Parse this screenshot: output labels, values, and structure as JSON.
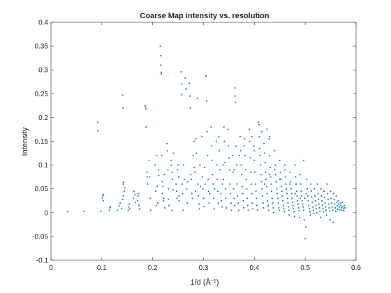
{
  "chart_data": {
    "type": "scatter",
    "title": "Coarse Map intensity vs. resolution",
    "xlabel": "1/d (Å",
    "xlabel_sup": "−1",
    "xlabel_close": ")",
    "ylabel": "Intensity",
    "xlim": [
      0,
      0.6
    ],
    "ylim": [
      -0.1,
      0.4
    ],
    "xticks": [
      "0",
      "0.1",
      "0.2",
      "0.3",
      "0.4",
      "0.5",
      "0.6"
    ],
    "yticks": [
      "-0.1",
      "-0.05",
      "0",
      "0.05",
      "0.1",
      "0.15",
      "0.2",
      "0.25",
      "0.3",
      "0.35",
      "0.4"
    ],
    "grid": false,
    "marker_color": "#0072BD",
    "axis_color": "#262626",
    "points": [
      [
        0.033,
        0.002
      ],
      [
        0.065,
        0.003
      ],
      [
        0.092,
        0.19
      ],
      [
        0.092,
        0.172
      ],
      [
        0.098,
        0.003
      ],
      [
        0.101,
        0.03
      ],
      [
        0.102,
        0.035
      ],
      [
        0.103,
        0.038
      ],
      [
        0.103,
        0.025
      ],
      [
        0.115,
        0.005
      ],
      [
        0.116,
        0.01
      ],
      [
        0.117,
        0.012
      ],
      [
        0.131,
        0.005
      ],
      [
        0.134,
        0.014
      ],
      [
        0.136,
        0.02
      ],
      [
        0.139,
        0.009
      ],
      [
        0.141,
        0.247
      ],
      [
        0.142,
        0.22
      ],
      [
        0.141,
        0.028
      ],
      [
        0.142,
        0.06
      ],
      [
        0.143,
        0.064
      ],
      [
        0.144,
        0.045
      ],
      [
        0.142,
        0.035
      ],
      [
        0.145,
        0.052
      ],
      [
        0.152,
        0.005
      ],
      [
        0.153,
        0.012
      ],
      [
        0.154,
        0.018
      ],
      [
        0.155,
        0.008
      ],
      [
        0.162,
        0.03
      ],
      [
        0.163,
        0.045
      ],
      [
        0.165,
        0.038
      ],
      [
        0.166,
        0.022
      ],
      [
        0.17,
        0.025
      ],
      [
        0.171,
        0.035
      ],
      [
        0.172,
        0.04
      ],
      [
        0.173,
        0.015
      ],
      [
        0.174,
        0.008
      ],
      [
        0.185,
        0.225
      ],
      [
        0.186,
        0.222
      ],
      [
        0.187,
        0.218
      ],
      [
        0.187,
        0.18
      ],
      [
        0.189,
        0.085
      ],
      [
        0.189,
        0.075
      ],
      [
        0.19,
        0.06
      ],
      [
        0.193,
        0.11
      ],
      [
        0.194,
        0.075
      ],
      [
        0.195,
        0.03
      ],
      [
        0.196,
        0.005
      ],
      [
        0.205,
        0.1
      ],
      [
        0.206,
        0.045
      ],
      [
        0.207,
        0.015
      ],
      [
        0.208,
        0.12
      ],
      [
        0.209,
        0.055
      ],
      [
        0.21,
        0.02
      ],
      [
        0.211,
        0.09
      ],
      [
        0.212,
        0.078
      ],
      [
        0.215,
        0.35
      ],
      [
        0.216,
        0.33
      ],
      [
        0.216,
        0.31
      ],
      [
        0.217,
        0.295
      ],
      [
        0.217,
        0.292
      ],
      [
        0.218,
        0.12
      ],
      [
        0.219,
        0.065
      ],
      [
        0.219,
        0.04
      ],
      [
        0.22,
        0.055
      ],
      [
        0.221,
        0.025
      ],
      [
        0.222,
        0.03
      ],
      [
        0.223,
        0.08
      ],
      [
        0.224,
        0.01
      ],
      [
        0.228,
        0.145
      ],
      [
        0.229,
        0.13
      ],
      [
        0.23,
        0.09
      ],
      [
        0.231,
        0.05
      ],
      [
        0.231,
        0.028
      ],
      [
        0.232,
        0.015
      ],
      [
        0.236,
        0.11
      ],
      [
        0.237,
        0.1
      ],
      [
        0.238,
        0.085
      ],
      [
        0.238,
        0.005
      ],
      [
        0.239,
        0.07
      ],
      [
        0.24,
        0.048
      ],
      [
        0.241,
        0.125
      ],
      [
        0.246,
        0.06
      ],
      [
        0.247,
        0.045
      ],
      [
        0.248,
        0.03
      ],
      [
        0.249,
        0.09
      ],
      [
        0.25,
        0.1
      ],
      [
        0.251,
        0.075
      ],
      [
        0.252,
        0.035
      ],
      [
        0.252,
        0.025
      ],
      [
        0.256,
        0.296
      ],
      [
        0.257,
        0.27
      ],
      [
        0.257,
        0.248
      ],
      [
        0.258,
        0.06
      ],
      [
        0.259,
        0.04
      ],
      [
        0.26,
        0.005
      ],
      [
        0.261,
        0.1
      ],
      [
        0.262,
        0.07
      ],
      [
        0.264,
        0.283
      ],
      [
        0.265,
        0.26
      ],
      [
        0.266,
        0.26
      ],
      [
        0.267,
        0.05
      ],
      [
        0.268,
        0.02
      ],
      [
        0.269,
        0.065
      ],
      [
        0.272,
        0.272
      ],
      [
        0.273,
        0.245
      ],
      [
        0.274,
        0.22
      ],
      [
        0.275,
        0.08
      ],
      [
        0.276,
        0.07
      ],
      [
        0.277,
        0.04
      ],
      [
        0.278,
        0.03
      ],
      [
        0.28,
        0.12
      ],
      [
        0.281,
        0.15
      ],
      [
        0.282,
        0.095
      ],
      [
        0.283,
        0.085
      ],
      [
        0.284,
        0.045
      ],
      [
        0.285,
        0.155
      ],
      [
        0.286,
        0.125
      ],
      [
        0.288,
        0.24
      ],
      [
        0.289,
        0.06
      ],
      [
        0.29,
        0.035
      ],
      [
        0.291,
        0.018
      ],
      [
        0.292,
        0.008
      ],
      [
        0.293,
        0.1
      ],
      [
        0.294,
        0.055
      ],
      [
        0.297,
        0.16
      ],
      [
        0.298,
        0.075
      ],
      [
        0.299,
        0.05
      ],
      [
        0.3,
        0.03
      ],
      [
        0.301,
        0.013
      ],
      [
        0.302,
        0.095
      ],
      [
        0.303,
        0.06
      ],
      [
        0.305,
        0.287
      ],
      [
        0.306,
        0.235
      ],
      [
        0.307,
        0.17
      ],
      [
        0.308,
        0.12
      ],
      [
        0.309,
        0.07
      ],
      [
        0.31,
        0.045
      ],
      [
        0.311,
        0.02
      ],
      [
        0.312,
        0.04
      ],
      [
        0.315,
        0.18
      ],
      [
        0.316,
        0.14
      ],
      [
        0.317,
        0.11
      ],
      [
        0.318,
        0.08
      ],
      [
        0.319,
        0.06
      ],
      [
        0.32,
        0.03
      ],
      [
        0.321,
        0.008
      ],
      [
        0.322,
        0.05
      ],
      [
        0.325,
        0.15
      ],
      [
        0.326,
        0.1
      ],
      [
        0.327,
        0.07
      ],
      [
        0.328,
        0.045
      ],
      [
        0.329,
        0.02
      ],
      [
        0.33,
        0.16
      ],
      [
        0.331,
        0.13
      ],
      [
        0.332,
        0.09
      ],
      [
        0.334,
        0.04
      ],
      [
        0.335,
        0.025
      ],
      [
        0.336,
        0.012
      ],
      [
        0.337,
        0.06
      ],
      [
        0.338,
        0.1
      ],
      [
        0.339,
        0.07
      ],
      [
        0.34,
        0.18
      ],
      [
        0.341,
        0.15
      ],
      [
        0.342,
        0.105
      ],
      [
        0.343,
        0.05
      ],
      [
        0.344,
        0.03
      ],
      [
        0.345,
        0.01
      ],
      [
        0.348,
        0.175
      ],
      [
        0.349,
        0.14
      ],
      [
        0.35,
        0.115
      ],
      [
        0.351,
        0.09
      ],
      [
        0.352,
        0.06
      ],
      [
        0.353,
        0.04
      ],
      [
        0.354,
        0.02
      ],
      [
        0.355,
        0.005
      ],
      [
        0.357,
        0.12
      ],
      [
        0.358,
        0.085
      ],
      [
        0.359,
        0.05
      ],
      [
        0.36,
        0.03
      ],
      [
        0.361,
        0.015
      ],
      [
        0.362,
        0.262
      ],
      [
        0.362,
        0.245
      ],
      [
        0.363,
        0.232
      ],
      [
        0.364,
        0.14
      ],
      [
        0.365,
        0.1
      ],
      [
        0.366,
        0.06
      ],
      [
        0.367,
        0.035
      ],
      [
        0.368,
        0.02
      ],
      [
        0.369,
        0.005
      ],
      [
        0.372,
        0.16
      ],
      [
        0.373,
        0.13
      ],
      [
        0.374,
        0.1
      ],
      [
        0.375,
        0.08
      ],
      [
        0.376,
        0.055
      ],
      [
        0.377,
        0.04
      ],
      [
        0.378,
        0.025
      ],
      [
        0.379,
        0.01
      ],
      [
        0.381,
        0.155
      ],
      [
        0.382,
        0.12
      ],
      [
        0.383,
        0.09
      ],
      [
        0.384,
        0.07
      ],
      [
        0.385,
        0.05
      ],
      [
        0.386,
        0.03
      ],
      [
        0.387,
        0.015
      ],
      [
        0.388,
        0.005
      ],
      [
        0.39,
        0.175
      ],
      [
        0.391,
        0.15
      ],
      [
        0.392,
        0.115
      ],
      [
        0.393,
        0.085
      ],
      [
        0.394,
        0.06
      ],
      [
        0.395,
        0.04
      ],
      [
        0.396,
        0.02
      ],
      [
        0.397,
        0.008
      ],
      [
        0.399,
        0.14
      ],
      [
        0.4,
        0.11
      ],
      [
        0.401,
        0.085
      ],
      [
        0.402,
        0.06
      ],
      [
        0.403,
        0.045
      ],
      [
        0.404,
        0.03
      ],
      [
        0.405,
        0.015
      ],
      [
        0.406,
        0.005
      ],
      [
        0.408,
        0.19
      ],
      [
        0.409,
        0.185
      ],
      [
        0.41,
        0.16
      ],
      [
        0.41,
        0.135
      ],
      [
        0.411,
        0.12
      ],
      [
        0.412,
        0.1
      ],
      [
        0.413,
        0.08
      ],
      [
        0.414,
        0.065
      ],
      [
        0.415,
        0.05
      ],
      [
        0.416,
        0.035
      ],
      [
        0.417,
        0.02
      ],
      [
        0.418,
        0.01
      ],
      [
        0.419,
        0.145
      ],
      [
        0.42,
        0.125
      ],
      [
        0.421,
        0.105
      ],
      [
        0.422,
        0.085
      ],
      [
        0.423,
        0.07
      ],
      [
        0.424,
        0.055
      ],
      [
        0.425,
        0.04
      ],
      [
        0.426,
        0.025
      ],
      [
        0.427,
        0.015
      ],
      [
        0.428,
        0.005
      ],
      [
        0.429,
        0.155
      ],
      [
        0.43,
        0.12
      ],
      [
        0.431,
        0.095
      ],
      [
        0.432,
        0.075
      ],
      [
        0.433,
        0.06
      ],
      [
        0.434,
        0.045
      ],
      [
        0.435,
        0.03
      ],
      [
        0.436,
        0.02
      ],
      [
        0.437,
        0.01
      ],
      [
        0.438,
        0.0
      ],
      [
        0.44,
        0.13
      ],
      [
        0.441,
        0.1
      ],
      [
        0.442,
        0.08
      ],
      [
        0.443,
        0.065
      ],
      [
        0.444,
        0.05
      ],
      [
        0.445,
        0.04
      ],
      [
        0.446,
        0.03
      ],
      [
        0.447,
        0.02
      ],
      [
        0.448,
        0.01
      ],
      [
        0.449,
        0.005
      ],
      [
        0.45,
        0.11
      ],
      [
        0.451,
        0.085
      ],
      [
        0.452,
        0.07
      ],
      [
        0.453,
        0.055
      ],
      [
        0.454,
        0.045
      ],
      [
        0.455,
        0.035
      ],
      [
        0.456,
        0.025
      ],
      [
        0.457,
        0.015
      ],
      [
        0.458,
        0.008
      ],
      [
        0.459,
        0.002
      ],
      [
        0.46,
        0.09
      ],
      [
        0.461,
        0.075
      ],
      [
        0.462,
        0.06
      ],
      [
        0.463,
        0.05
      ],
      [
        0.464,
        0.04
      ],
      [
        0.465,
        0.03
      ],
      [
        0.466,
        0.02
      ],
      [
        0.467,
        0.012
      ],
      [
        0.468,
        0.005
      ],
      [
        0.469,
        -0.005
      ],
      [
        0.47,
        0.085
      ],
      [
        0.471,
        0.065
      ],
      [
        0.472,
        0.05
      ],
      [
        0.473,
        0.04
      ],
      [
        0.474,
        0.03
      ],
      [
        0.475,
        0.022
      ],
      [
        0.476,
        0.015
      ],
      [
        0.477,
        0.008
      ],
      [
        0.478,
        0.002
      ],
      [
        0.479,
        -0.008
      ],
      [
        0.48,
        0.1
      ],
      [
        0.481,
        0.075
      ],
      [
        0.482,
        0.06
      ],
      [
        0.483,
        0.045
      ],
      [
        0.484,
        0.035
      ],
      [
        0.485,
        0.025
      ],
      [
        0.486,
        0.018
      ],
      [
        0.487,
        0.01
      ],
      [
        0.488,
        0.004
      ],
      [
        0.489,
        -0.01
      ],
      [
        0.49,
        0.08
      ],
      [
        0.491,
        0.06
      ],
      [
        0.492,
        0.045
      ],
      [
        0.493,
        0.035
      ],
      [
        0.494,
        0.025
      ],
      [
        0.495,
        0.018
      ],
      [
        0.496,
        0.012
      ],
      [
        0.497,
        0.11
      ],
      [
        0.497,
        0.005
      ],
      [
        0.498,
        -0.015
      ],
      [
        0.499,
        0.03
      ],
      [
        0.5,
        -0.055
      ],
      [
        0.501,
        -0.03
      ],
      [
        0.502,
        0.04
      ],
      [
        0.503,
        0.07
      ],
      [
        0.504,
        0.05
      ],
      [
        0.505,
        0.035
      ],
      [
        0.506,
        0.025
      ],
      [
        0.507,
        0.015
      ],
      [
        0.508,
        0.008
      ],
      [
        0.509,
        0.002
      ],
      [
        0.51,
        -0.005
      ],
      [
        0.511,
        0.06
      ],
      [
        0.512,
        0.045
      ],
      [
        0.513,
        0.032
      ],
      [
        0.514,
        0.022
      ],
      [
        0.515,
        0.012
      ],
      [
        0.516,
        0.005
      ],
      [
        0.517,
        -0.002
      ],
      [
        0.518,
        0.05
      ],
      [
        0.519,
        0.035
      ],
      [
        0.52,
        0.025
      ],
      [
        0.521,
        0.015
      ],
      [
        0.522,
        0.008
      ],
      [
        0.523,
        0.0
      ],
      [
        0.524,
        0.06
      ],
      [
        0.525,
        0.04
      ],
      [
        0.526,
        0.028
      ],
      [
        0.527,
        0.018
      ],
      [
        0.528,
        0.01
      ],
      [
        0.529,
        0.003
      ],
      [
        0.53,
        -0.01
      ],
      [
        0.531,
        0.05
      ],
      [
        0.532,
        0.035
      ],
      [
        0.533,
        0.025
      ],
      [
        0.534,
        0.015
      ],
      [
        0.535,
        0.008
      ],
      [
        0.536,
        0.002
      ],
      [
        0.537,
        0.045
      ],
      [
        0.538,
        0.032
      ],
      [
        0.539,
        0.02
      ],
      [
        0.54,
        0.012
      ],
      [
        0.541,
        0.005
      ],
      [
        0.542,
        -0.005
      ],
      [
        0.543,
        0.06
      ],
      [
        0.544,
        0.04
      ],
      [
        0.545,
        0.028
      ],
      [
        0.546,
        0.018
      ],
      [
        0.547,
        0.01
      ],
      [
        0.548,
        0.003
      ],
      [
        0.549,
        -0.015
      ],
      [
        0.55,
        0.045
      ],
      [
        0.551,
        0.03
      ],
      [
        0.552,
        0.02
      ],
      [
        0.553,
        0.012
      ],
      [
        0.554,
        0.005
      ],
      [
        0.555,
        -0.02
      ],
      [
        0.556,
        0.04
      ],
      [
        0.557,
        0.028
      ],
      [
        0.558,
        0.018
      ],
      [
        0.559,
        0.01
      ],
      [
        0.56,
        0.003
      ],
      [
        0.561,
        0.035
      ],
      [
        0.562,
        0.022
      ],
      [
        0.563,
        0.014
      ],
      [
        0.564,
        0.007
      ],
      [
        0.565,
        0.025
      ],
      [
        0.566,
        0.018
      ],
      [
        0.567,
        0.012
      ],
      [
        0.568,
        0.006
      ],
      [
        0.569,
        0.02
      ],
      [
        0.57,
        0.015
      ],
      [
        0.571,
        0.01
      ],
      [
        0.572,
        0.005
      ],
      [
        0.573,
        0.022
      ],
      [
        0.574,
        0.012
      ],
      [
        0.575,
        0.008
      ],
      [
        0.576,
        0.004
      ],
      [
        0.577,
        0.015
      ],
      [
        0.578,
        0.01
      ],
      [
        0.43,
        0.16
      ],
      [
        0.425,
        0.175
      ],
      [
        0.415,
        0.17
      ],
      [
        0.395,
        0.16
      ],
      [
        0.4,
        0.13
      ],
      [
        0.38,
        0.14
      ],
      [
        0.37,
        0.12
      ],
      [
        0.36,
        0.09
      ],
      [
        0.46,
        0.1
      ],
      [
        0.47,
        0.06
      ],
      [
        0.48,
        0.04
      ],
      [
        0.49,
        0.03
      ],
      [
        0.45,
        0.07
      ],
      [
        0.44,
        0.09
      ],
      [
        0.43,
        0.08
      ],
      [
        0.42,
        0.06
      ]
    ]
  }
}
